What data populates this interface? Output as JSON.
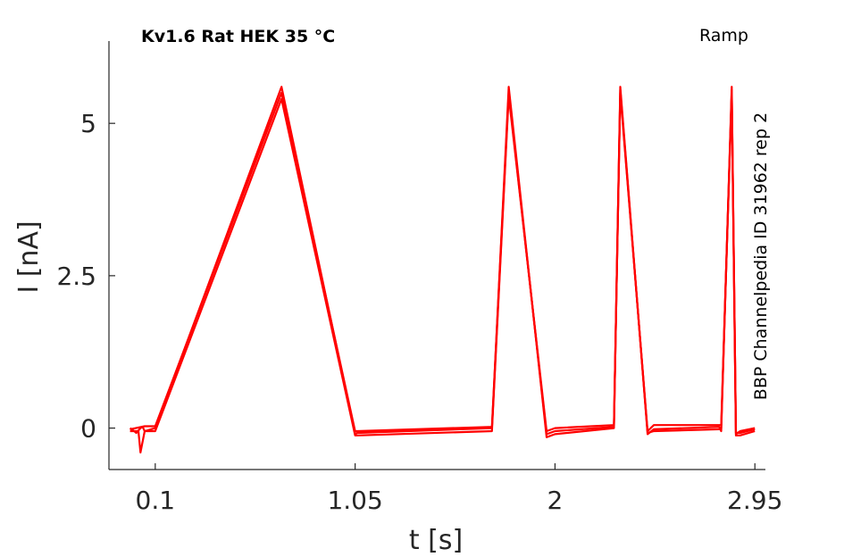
{
  "title": "Kv1.6  Rat  HEK  35 °C",
  "protocol_label": "Ramp",
  "side_label": "BBP Channelpedia ID 31962 rep 2",
  "colors": {
    "trace": "#ff0000",
    "axis": "#262626"
  },
  "chart_data": {
    "type": "line",
    "xlabel": "t [s]",
    "ylabel": "I [nA]",
    "xlim": [
      -0.12,
      3.0
    ],
    "ylim": [
      -0.68,
      6.35
    ],
    "xticks": [
      0.1,
      1.05,
      2,
      2.95
    ],
    "xtick_labels": [
      "0.1",
      "1.05",
      "2",
      "2.95"
    ],
    "yticks": [
      0,
      2.5,
      5
    ],
    "ytick_labels": [
      "0",
      "2.5",
      "5"
    ],
    "grid": false,
    "legend": "none",
    "series": [
      {
        "x": [
          -0.02,
          0.0,
          0.01,
          0.03,
          0.04,
          0.05,
          0.1,
          0.7,
          1.05,
          1.06,
          1.7,
          1.78,
          1.96,
          2.0,
          2.28,
          2.31,
          2.44,
          2.47,
          2.78,
          2.79,
          2.84,
          2.86,
          2.88,
          2.95
        ],
        "y": [
          0.0,
          -0.05,
          -0.08,
          0.0,
          0.02,
          -0.05,
          0.0,
          5.6,
          -0.1,
          -0.08,
          0.0,
          5.6,
          -0.15,
          -0.1,
          0.0,
          5.6,
          -0.1,
          -0.02,
          0.02,
          -0.05,
          5.6,
          -0.1,
          -0.05,
          0.0
        ]
      },
      {
        "x": [
          -0.02,
          0.02,
          0.03,
          0.05,
          0.1,
          0.7,
          1.05,
          1.06,
          1.7,
          1.78,
          1.96,
          2.0,
          2.28,
          2.31,
          2.44,
          2.47,
          2.78,
          2.79,
          2.84,
          2.86,
          2.88,
          2.95
        ],
        "y": [
          -0.05,
          -0.05,
          -0.4,
          -0.05,
          -0.05,
          5.4,
          -0.12,
          -0.12,
          -0.05,
          5.45,
          -0.05,
          0.0,
          0.05,
          5.5,
          -0.05,
          0.05,
          0.05,
          0.05,
          5.5,
          -0.12,
          -0.12,
          -0.05
        ]
      },
      {
        "x": [
          -0.02,
          0.05,
          0.1,
          0.7,
          1.05,
          1.06,
          1.7,
          1.78,
          1.96,
          2.0,
          2.28,
          2.31,
          2.44,
          2.47,
          2.78,
          2.79,
          2.84,
          2.86,
          2.88,
          2.95
        ],
        "y": [
          -0.02,
          0.03,
          0.03,
          5.5,
          -0.05,
          -0.05,
          0.02,
          5.5,
          -0.1,
          -0.05,
          0.02,
          5.55,
          -0.08,
          -0.05,
          -0.02,
          0.0,
          5.55,
          -0.08,
          -0.08,
          -0.02
        ]
      }
    ]
  }
}
